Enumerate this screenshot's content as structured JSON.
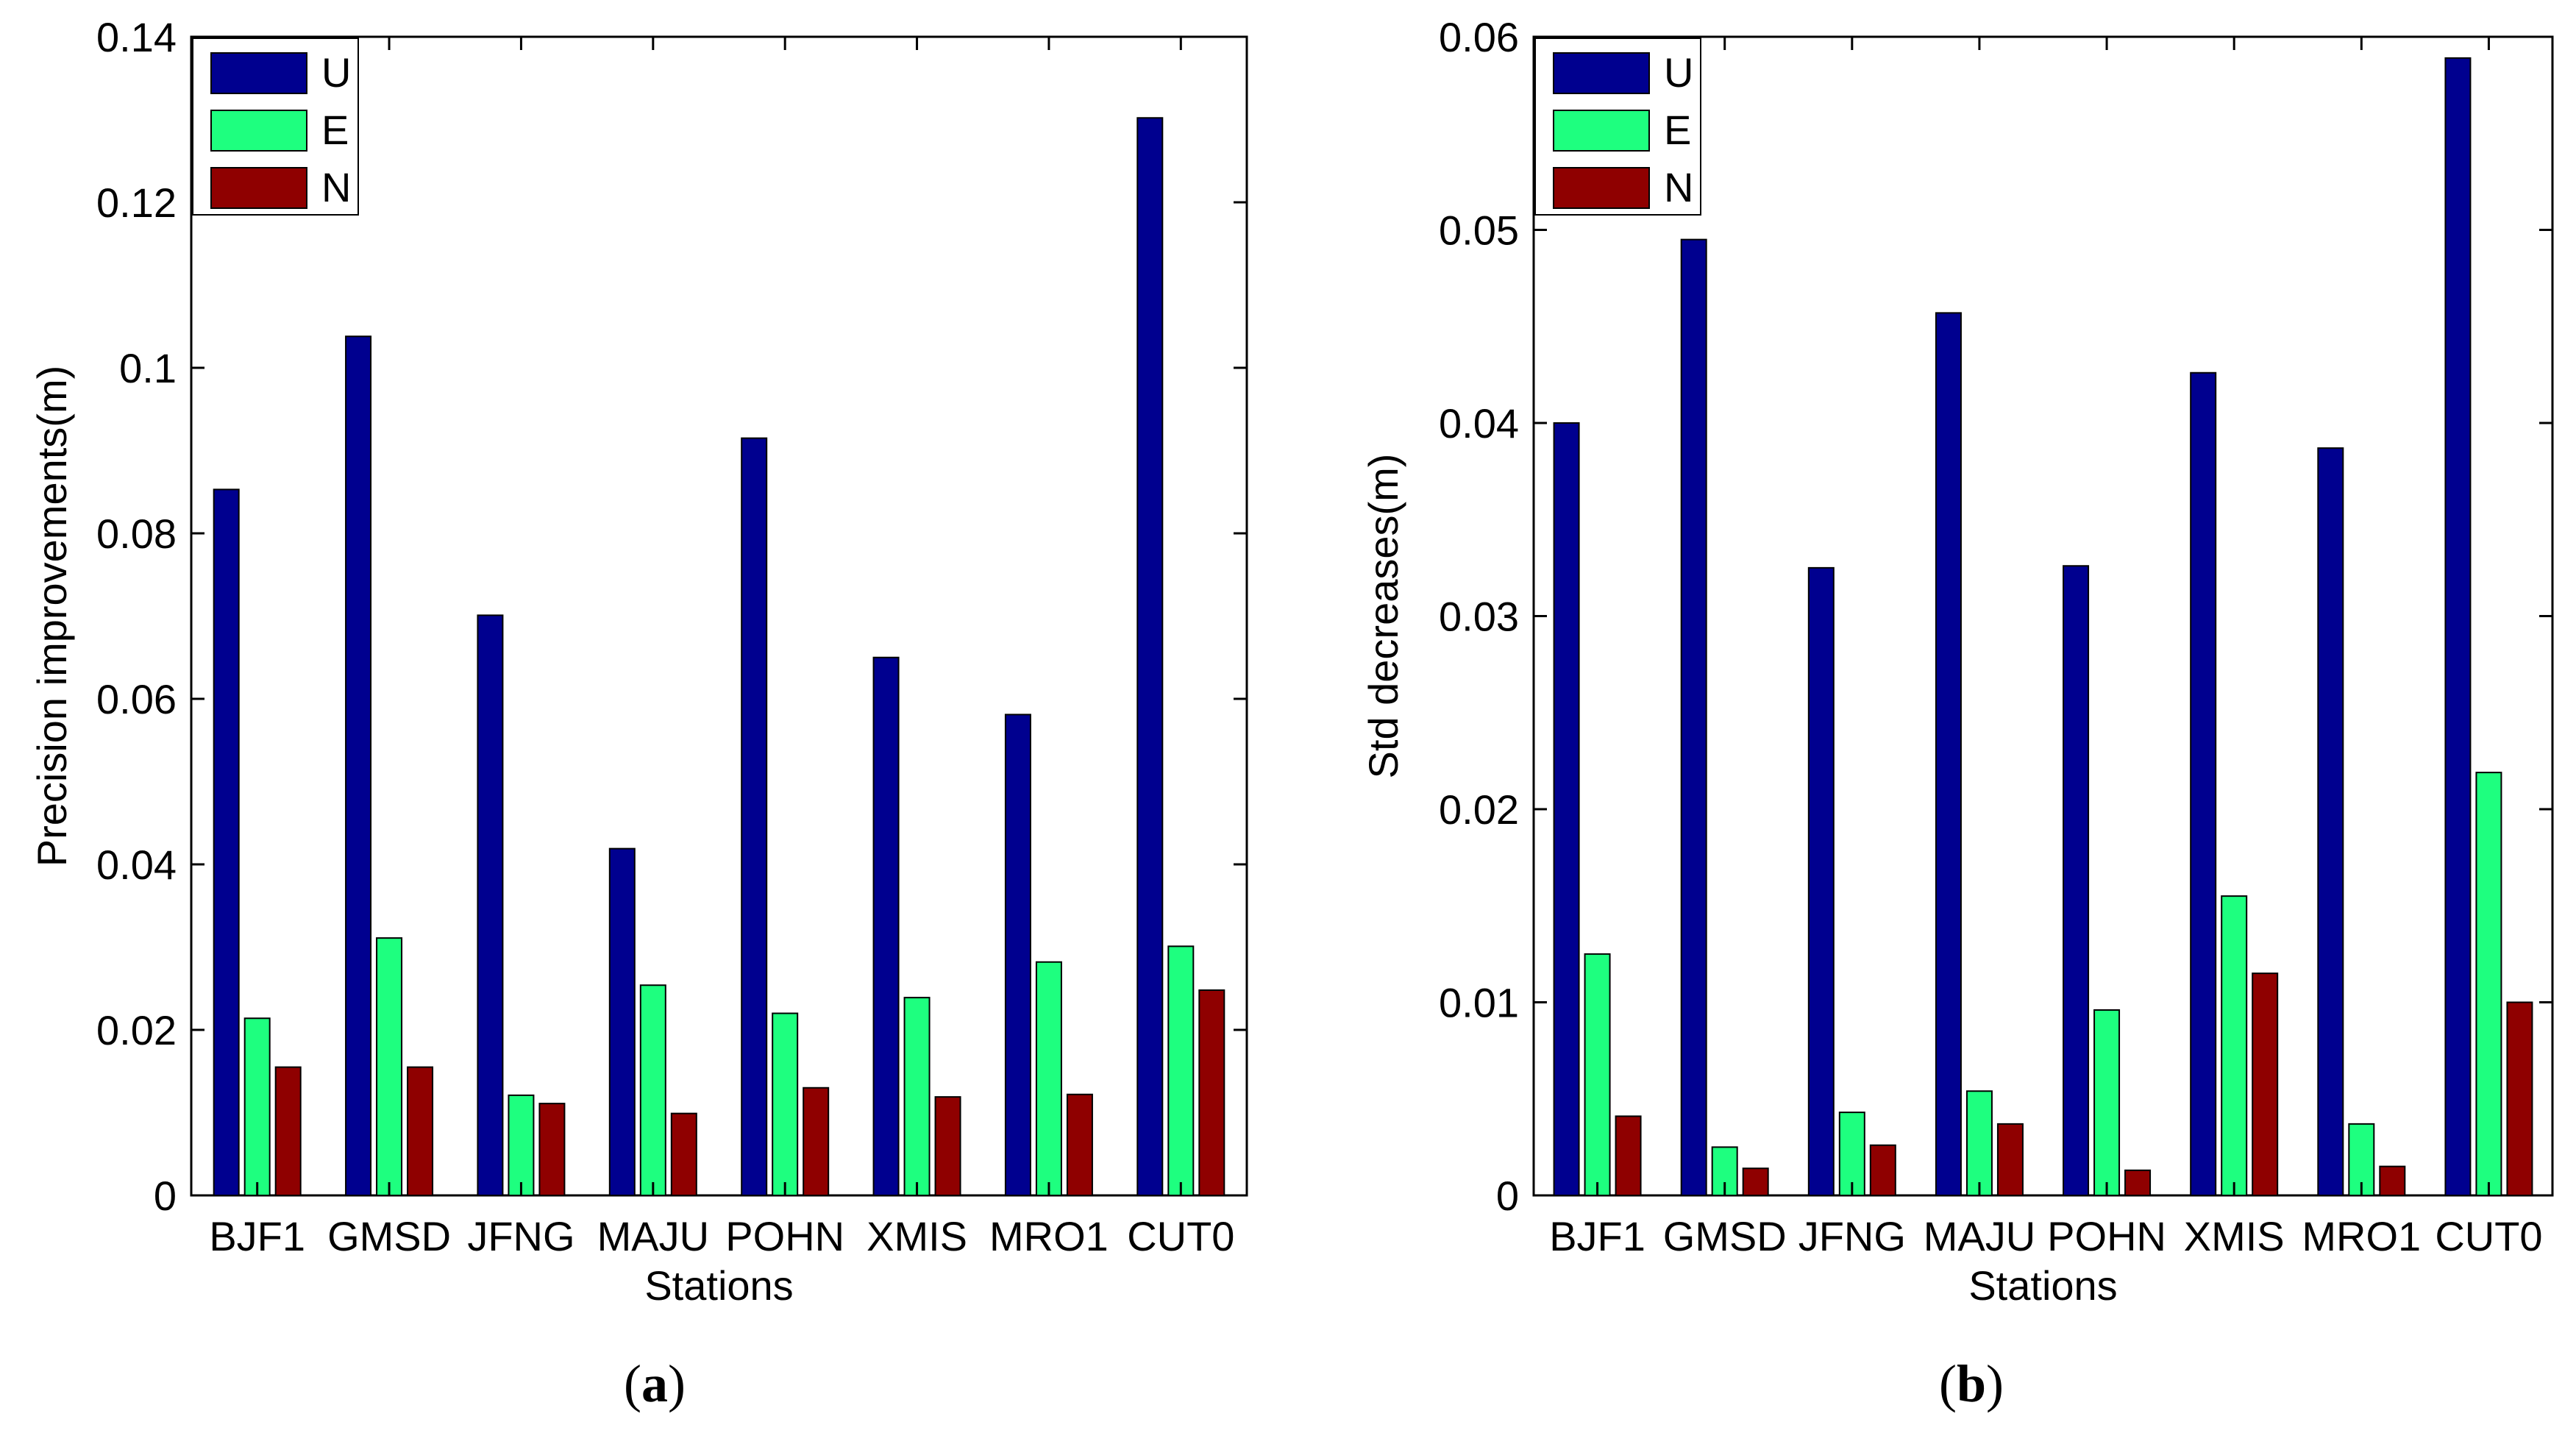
{
  "colors": {
    "U": "#00008f",
    "E": "#1eff7f",
    "N": "#8f0000"
  },
  "chart_data": [
    {
      "type": "bar",
      "categories": [
        "BJF1",
        "GMSD",
        "JFNG",
        "MAJU",
        "POHN",
        "XMIS",
        "MRO1",
        "CUT0"
      ],
      "series": [
        {
          "name": "U",
          "values": [
            0.0853,
            0.1038,
            0.0701,
            0.0419,
            0.0915,
            0.065,
            0.0581,
            0.1302
          ]
        },
        {
          "name": "E",
          "values": [
            0.0214,
            0.0311,
            0.0121,
            0.0254,
            0.022,
            0.0239,
            0.0282,
            0.0301
          ]
        },
        {
          "name": "N",
          "values": [
            0.0155,
            0.0155,
            0.0111,
            0.0099,
            0.013,
            0.0119,
            0.0122,
            0.0248
          ]
        }
      ],
      "xlabel": "Stations",
      "ylabel": "Precision improvements(m)",
      "ylim": [
        0,
        0.14
      ],
      "yticks": [
        "0",
        "0.02",
        "0.04",
        "0.06",
        "0.08",
        "0.1",
        "0.12",
        "0.14"
      ],
      "legend": "top-left",
      "caption_label": "a"
    },
    {
      "type": "bar",
      "categories": [
        "BJF1",
        "GMSD",
        "JFNG",
        "MAJU",
        "POHN",
        "XMIS",
        "MRO1",
        "CUT0"
      ],
      "series": [
        {
          "name": "U",
          "values": [
            0.04,
            0.0495,
            0.0325,
            0.0457,
            0.0326,
            0.0426,
            0.0387,
            0.0589
          ]
        },
        {
          "name": "E",
          "values": [
            0.0125,
            0.0025,
            0.0043,
            0.0054,
            0.0096,
            0.0155,
            0.0037,
            0.0219
          ]
        },
        {
          "name": "N",
          "values": [
            0.0041,
            0.0014,
            0.0026,
            0.0037,
            0.0013,
            0.0115,
            0.0015,
            0.01
          ]
        }
      ],
      "xlabel": "Stations",
      "ylabel": "Std decreases(m)",
      "ylim": [
        0,
        0.06
      ],
      "yticks": [
        "0",
        "0.01",
        "0.02",
        "0.03",
        "0.04",
        "0.05",
        "0.06"
      ],
      "legend": "top-left",
      "caption_label": "b"
    }
  ]
}
